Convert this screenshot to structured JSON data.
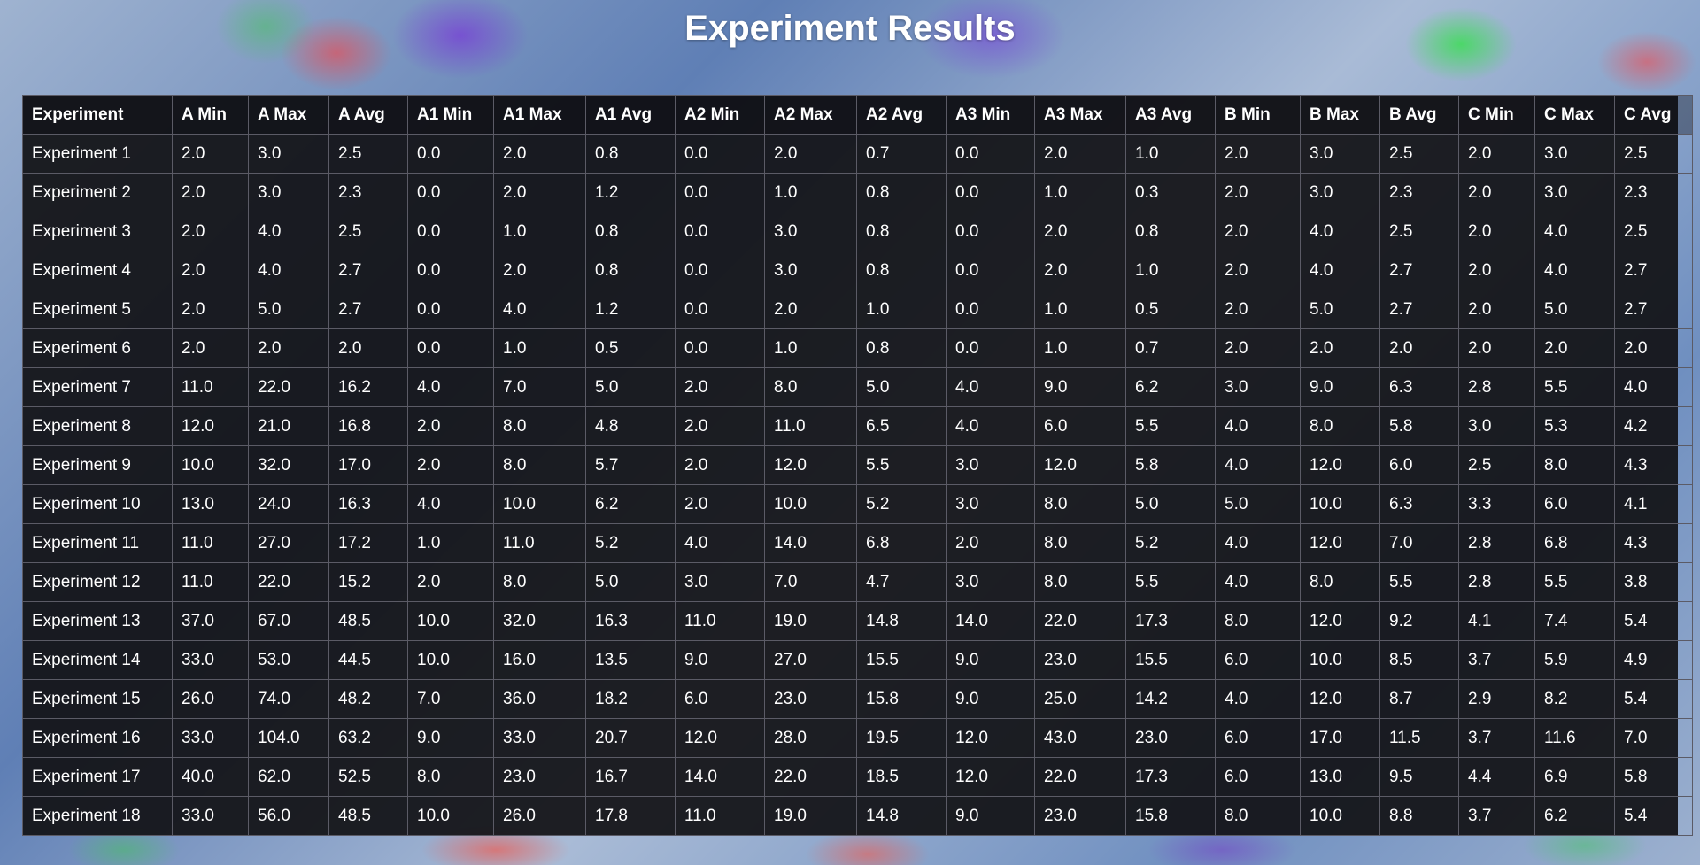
{
  "title": "Experiment Results",
  "table": {
    "headers": [
      "Experiment",
      "A Min",
      "A Max",
      "A Avg",
      "A1 Min",
      "A1 Max",
      "A1 Avg",
      "A2 Min",
      "A2 Max",
      "A2 Avg",
      "A3 Min",
      "A3 Max",
      "A3 Avg",
      "B Min",
      "B Max",
      "B Avg",
      "C Min",
      "C Max",
      "C Avg"
    ],
    "rows": [
      [
        "Experiment 1",
        "2.0",
        "3.0",
        "2.5",
        "0.0",
        "2.0",
        "0.8",
        "0.0",
        "2.0",
        "0.7",
        "0.0",
        "2.0",
        "1.0",
        "2.0",
        "3.0",
        "2.5",
        "2.0",
        "3.0",
        "2.5"
      ],
      [
        "Experiment 2",
        "2.0",
        "3.0",
        "2.3",
        "0.0",
        "2.0",
        "1.2",
        "0.0",
        "1.0",
        "0.8",
        "0.0",
        "1.0",
        "0.3",
        "2.0",
        "3.0",
        "2.3",
        "2.0",
        "3.0",
        "2.3"
      ],
      [
        "Experiment 3",
        "2.0",
        "4.0",
        "2.5",
        "0.0",
        "1.0",
        "0.8",
        "0.0",
        "3.0",
        "0.8",
        "0.0",
        "2.0",
        "0.8",
        "2.0",
        "4.0",
        "2.5",
        "2.0",
        "4.0",
        "2.5"
      ],
      [
        "Experiment 4",
        "2.0",
        "4.0",
        "2.7",
        "0.0",
        "2.0",
        "0.8",
        "0.0",
        "3.0",
        "0.8",
        "0.0",
        "2.0",
        "1.0",
        "2.0",
        "4.0",
        "2.7",
        "2.0",
        "4.0",
        "2.7"
      ],
      [
        "Experiment 5",
        "2.0",
        "5.0",
        "2.7",
        "0.0",
        "4.0",
        "1.2",
        "0.0",
        "2.0",
        "1.0",
        "0.0",
        "1.0",
        "0.5",
        "2.0",
        "5.0",
        "2.7",
        "2.0",
        "5.0",
        "2.7"
      ],
      [
        "Experiment 6",
        "2.0",
        "2.0",
        "2.0",
        "0.0",
        "1.0",
        "0.5",
        "0.0",
        "1.0",
        "0.8",
        "0.0",
        "1.0",
        "0.7",
        "2.0",
        "2.0",
        "2.0",
        "2.0",
        "2.0",
        "2.0"
      ],
      [
        "Experiment 7",
        "11.0",
        "22.0",
        "16.2",
        "4.0",
        "7.0",
        "5.0",
        "2.0",
        "8.0",
        "5.0",
        "4.0",
        "9.0",
        "6.2",
        "3.0",
        "9.0",
        "6.3",
        "2.8",
        "5.5",
        "4.0"
      ],
      [
        "Experiment 8",
        "12.0",
        "21.0",
        "16.8",
        "2.0",
        "8.0",
        "4.8",
        "2.0",
        "11.0",
        "6.5",
        "4.0",
        "6.0",
        "5.5",
        "4.0",
        "8.0",
        "5.8",
        "3.0",
        "5.3",
        "4.2"
      ],
      [
        "Experiment 9",
        "10.0",
        "32.0",
        "17.0",
        "2.0",
        "8.0",
        "5.7",
        "2.0",
        "12.0",
        "5.5",
        "3.0",
        "12.0",
        "5.8",
        "4.0",
        "12.0",
        "6.0",
        "2.5",
        "8.0",
        "4.3"
      ],
      [
        "Experiment 10",
        "13.0",
        "24.0",
        "16.3",
        "4.0",
        "10.0",
        "6.2",
        "2.0",
        "10.0",
        "5.2",
        "3.0",
        "8.0",
        "5.0",
        "5.0",
        "10.0",
        "6.3",
        "3.3",
        "6.0",
        "4.1"
      ],
      [
        "Experiment 11",
        "11.0",
        "27.0",
        "17.2",
        "1.0",
        "11.0",
        "5.2",
        "4.0",
        "14.0",
        "6.8",
        "2.0",
        "8.0",
        "5.2",
        "4.0",
        "12.0",
        "7.0",
        "2.8",
        "6.8",
        "4.3"
      ],
      [
        "Experiment 12",
        "11.0",
        "22.0",
        "15.2",
        "2.0",
        "8.0",
        "5.0",
        "3.0",
        "7.0",
        "4.7",
        "3.0",
        "8.0",
        "5.5",
        "4.0",
        "8.0",
        "5.5",
        "2.8",
        "5.5",
        "3.8"
      ],
      [
        "Experiment 13",
        "37.0",
        "67.0",
        "48.5",
        "10.0",
        "32.0",
        "16.3",
        "11.0",
        "19.0",
        "14.8",
        "14.0",
        "22.0",
        "17.3",
        "8.0",
        "12.0",
        "9.2",
        "4.1",
        "7.4",
        "5.4"
      ],
      [
        "Experiment 14",
        "33.0",
        "53.0",
        "44.5",
        "10.0",
        "16.0",
        "13.5",
        "9.0",
        "27.0",
        "15.5",
        "9.0",
        "23.0",
        "15.5",
        "6.0",
        "10.0",
        "8.5",
        "3.7",
        "5.9",
        "4.9"
      ],
      [
        "Experiment 15",
        "26.0",
        "74.0",
        "48.2",
        "7.0",
        "36.0",
        "18.2",
        "6.0",
        "23.0",
        "15.8",
        "9.0",
        "25.0",
        "14.2",
        "4.0",
        "12.0",
        "8.7",
        "2.9",
        "8.2",
        "5.4"
      ],
      [
        "Experiment 16",
        "33.0",
        "104.0",
        "63.2",
        "9.0",
        "33.0",
        "20.7",
        "12.0",
        "28.0",
        "19.5",
        "12.0",
        "43.0",
        "23.0",
        "6.0",
        "17.0",
        "11.5",
        "3.7",
        "11.6",
        "7.0"
      ],
      [
        "Experiment 17",
        "40.0",
        "62.0",
        "52.5",
        "8.0",
        "23.0",
        "16.7",
        "14.0",
        "22.0",
        "18.5",
        "12.0",
        "22.0",
        "17.3",
        "6.0",
        "13.0",
        "9.5",
        "4.4",
        "6.9",
        "5.8"
      ],
      [
        "Experiment 18",
        "33.0",
        "56.0",
        "48.5",
        "10.0",
        "26.0",
        "17.8",
        "11.0",
        "19.0",
        "14.8",
        "9.0",
        "23.0",
        "15.8",
        "8.0",
        "10.0",
        "8.8",
        "3.7",
        "6.2",
        "5.4"
      ]
    ]
  }
}
